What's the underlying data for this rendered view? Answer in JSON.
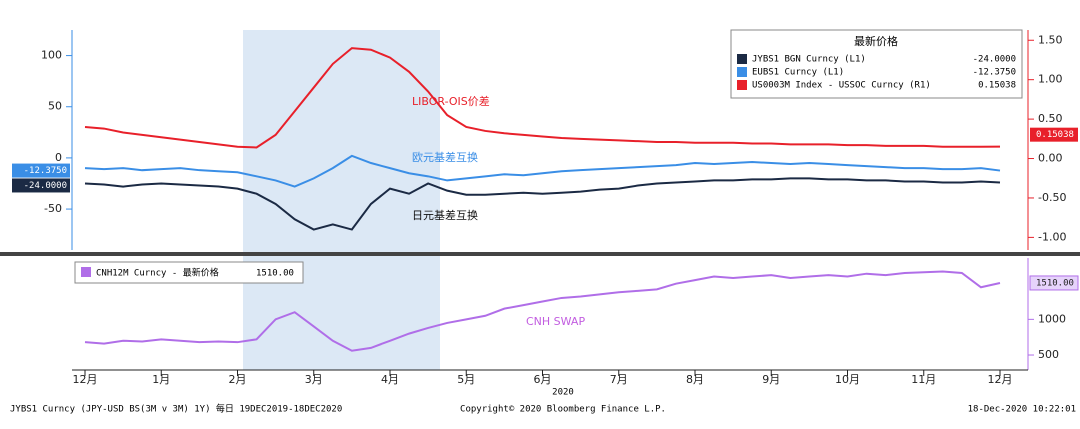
{
  "chart_data": [
    {
      "type": "line",
      "legend_title": "最新价格",
      "ylim": [
        -90,
        125
      ],
      "yticks": [
        -50,
        0,
        50,
        100
      ],
      "y2lim": [
        -1.16,
        1.63
      ],
      "y2ticks": [
        {
          "value": 1.5,
          "label": "1.50"
        },
        {
          "value": 1,
          "label": "1.00"
        },
        {
          "value": 0.5,
          "label": "0.50"
        },
        {
          "value": 0,
          "label": "0.00"
        },
        {
          "value": -0.5,
          "label": "-0.50"
        },
        {
          "value": -1,
          "label": "-1.00"
        }
      ],
      "annotations": [
        "LIBOR-OIS价差",
        "欧元基差互换",
        "日元基差互换"
      ],
      "series": [
        {
          "name": "JYBS1 BGN Curncy  (L1)",
          "color": "#1b2a44",
          "last_label": "-24.0000",
          "values": [
            -25,
            -26,
            -28,
            -26,
            -25,
            -26,
            -27,
            -28,
            -30,
            -35,
            -45,
            -60,
            -70,
            -65,
            -70,
            -45,
            -30,
            -35,
            -25,
            -32,
            -36,
            -36,
            -35,
            -34,
            -35,
            -34,
            -33,
            -31,
            -30,
            -27,
            -25,
            -24,
            -23,
            -22,
            -22,
            -21,
            -21,
            -20,
            -20,
            -21,
            -21,
            -22,
            -22,
            -23,
            -23,
            -24,
            -24,
            -23,
            -24
          ]
        },
        {
          "name": "EUBS1 Curncy  (L1)",
          "color": "#3a8ee6",
          "last_label": "-12.3750",
          "values": [
            -10,
            -11,
            -10,
            -12,
            -11,
            -10,
            -12,
            -13,
            -14,
            -18,
            -22,
            -28,
            -20,
            -10,
            2,
            -5,
            -10,
            -15,
            -18,
            -22,
            -20,
            -18,
            -16,
            -17,
            -15,
            -13,
            -12,
            -11,
            -10,
            -9,
            -8,
            -7,
            -5,
            -6,
            -5,
            -4,
            -5,
            -6,
            -5,
            -6,
            -7,
            -8,
            -9,
            -10,
            -10,
            -11,
            -11,
            -10,
            -12.375
          ]
        },
        {
          "name": "US0003M Index - USSOC Curncy  (R1)",
          "color": "#e8202a",
          "axis": "y2",
          "last_label": "0.15038",
          "values": [
            0.4,
            0.38,
            0.33,
            0.3,
            0.27,
            0.24,
            0.21,
            0.18,
            0.15,
            0.14,
            0.3,
            0.6,
            0.9,
            1.2,
            1.4,
            1.38,
            1.28,
            1.1,
            0.85,
            0.55,
            0.4,
            0.35,
            0.32,
            0.3,
            0.28,
            0.26,
            0.25,
            0.24,
            0.23,
            0.22,
            0.21,
            0.21,
            0.2,
            0.2,
            0.2,
            0.19,
            0.19,
            0.18,
            0.18,
            0.18,
            0.17,
            0.17,
            0.16,
            0.16,
            0.16,
            0.15,
            0.15,
            0.15,
            0.15038
          ]
        }
      ]
    },
    {
      "type": "line",
      "categories": [
        "12月",
        null,
        null,
        null,
        "1月",
        null,
        null,
        null,
        "2月",
        null,
        null,
        null,
        "3月",
        null,
        null,
        null,
        "4月",
        null,
        null,
        null,
        "5月",
        null,
        null,
        null,
        "6月",
        null,
        null,
        null,
        "7月",
        null,
        null,
        null,
        "8月",
        null,
        null,
        null,
        "9月",
        null,
        null,
        null,
        "10月",
        null,
        null,
        null,
        "11月",
        null,
        null,
        null,
        "12月"
      ],
      "x_label": "2020",
      "ylim": [
        290,
        1860
      ],
      "yticks": [
        500,
        1000
      ],
      "annotations": [
        "CNH SWAP"
      ],
      "series": [
        {
          "name": "CNH12M Curncy - 最新价格",
          "color": "#b06ee8",
          "last_label": "1510.00",
          "values": [
            680,
            660,
            700,
            690,
            720,
            700,
            680,
            690,
            680,
            720,
            1000,
            1100,
            900,
            700,
            560,
            600,
            700,
            800,
            880,
            950,
            1000,
            1050,
            1150,
            1200,
            1250,
            1300,
            1320,
            1350,
            1380,
            1400,
            1420,
            1500,
            1550,
            1600,
            1580,
            1600,
            1620,
            1580,
            1600,
            1620,
            1600,
            1640,
            1620,
            1650,
            1660,
            1670,
            1650,
            1450,
            1510
          ]
        }
      ]
    }
  ],
  "footer": {
    "left": "JYBS1 Curncy (JPY-USD BS(3M v 3M) 1Y) 每日 19DEC2019-18DEC2020",
    "center": "Copyright© 2020 Bloomberg Finance L.P.",
    "right": "18-Dec-2020 10:22:01"
  }
}
